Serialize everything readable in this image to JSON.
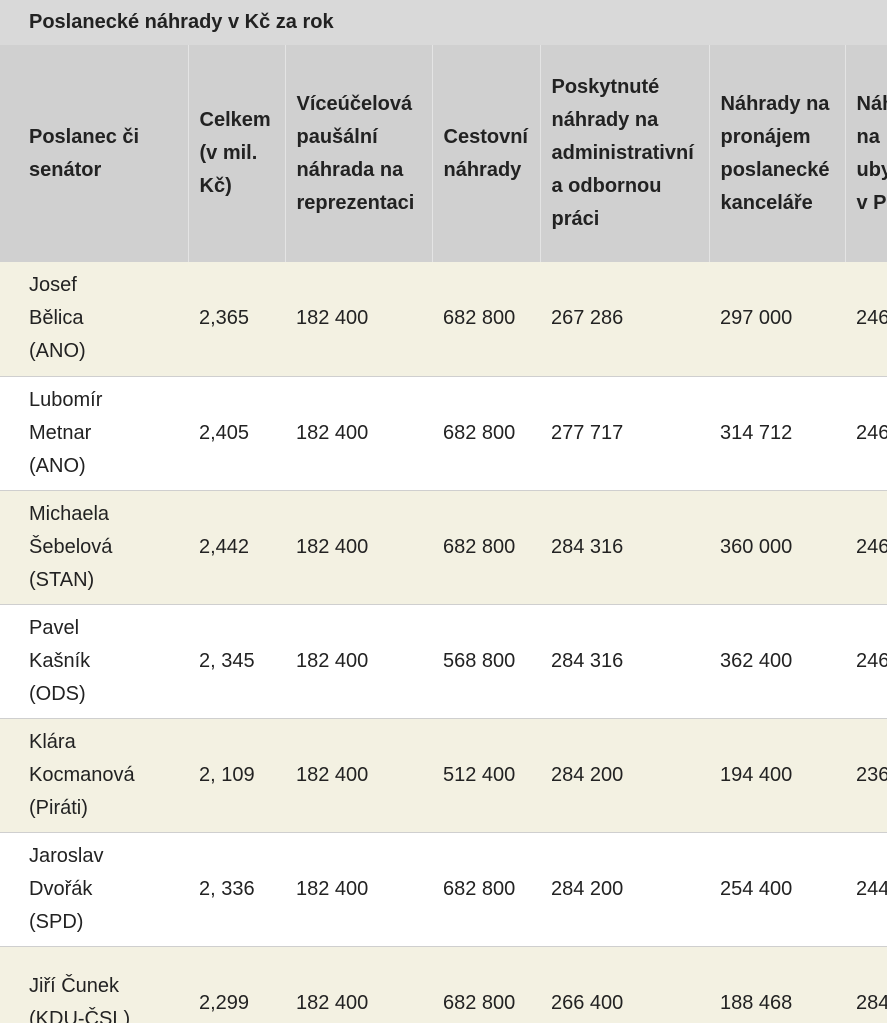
{
  "title": "Poslanecké náhrady v Kč za rok",
  "table": {
    "header": [
      [
        "Poslanec či",
        "senátor"
      ],
      [
        "Celkem",
        "(v mil.",
        "Kč)"
      ],
      [
        "Víceúčelová",
        "paušální",
        "náhrada na",
        "reprezentaci"
      ],
      [
        "Cestovní",
        "náhrady"
      ],
      [
        "Poskytnuté",
        "náhrady na",
        "administrativní",
        "a odbornou",
        "práci"
      ],
      [
        "Náhrady na",
        "pronájem",
        "poslanecké",
        "kanceláře"
      ],
      [
        "Náh",
        "na",
        "uby",
        "v P"
      ]
    ],
    "rows": [
      [
        [
          "Josef",
          "Bělica",
          "(ANO)"
        ],
        "2,365",
        "182 400",
        "682 800",
        "267 286",
        "297 000",
        "246"
      ],
      [
        [
          "Lubomír",
          "Metnar",
          "(ANO)"
        ],
        "2,405",
        "182 400",
        "682 800",
        "277 717",
        "314 712",
        "246"
      ],
      [
        [
          "Michaela",
          "Šebelová",
          "(STAN)"
        ],
        "2,442",
        "182 400",
        "682 800",
        "284 316",
        "360 000",
        "246"
      ],
      [
        [
          "Pavel",
          "Kašník",
          "(ODS)"
        ],
        "2, 345",
        "182 400",
        "568 800",
        "284 316",
        "362 400",
        "246"
      ],
      [
        [
          "Klára",
          "Kocmanová",
          "(Piráti)"
        ],
        "2, 109",
        "182 400",
        "512 400",
        "284 200",
        "194 400",
        "236"
      ],
      [
        [
          "Jaroslav",
          "Dvořák",
          "(SPD)"
        ],
        "2, 336",
        "182 400",
        "682 800",
        "284 200",
        "254 400",
        "244"
      ],
      [
        [
          "Jiří Čunek",
          "(KDU-ČSL)"
        ],
        "2,299",
        "182 400",
        "682 800",
        "266 400",
        "188 468",
        "284"
      ]
    ]
  }
}
